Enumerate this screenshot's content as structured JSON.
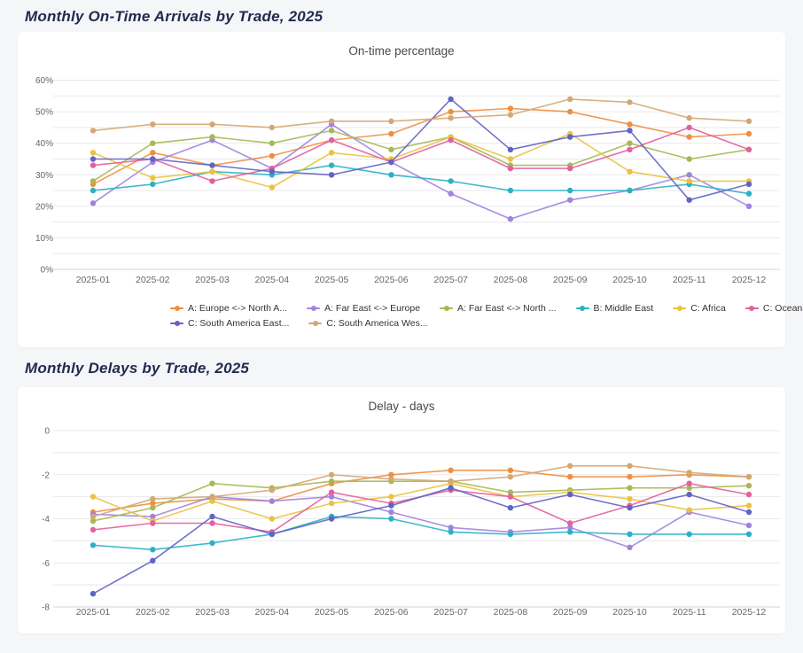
{
  "page": {
    "heading1": "Monthly On-Time Arrivals by Trade, 2025",
    "heading2": "Monthly Delays by Trade, 2025",
    "background_color": "#f5f6f8",
    "card_color": "#ffffff",
    "heading_color": "#232a50",
    "grid_color": "#e9e9ec",
    "axis_line_color": "#d4d4da",
    "tick_label_color": "#666666"
  },
  "chart_data": [
    {
      "type": "line",
      "title": "On-time percentage",
      "x": [
        "2025-01",
        "2025-02",
        "2025-03",
        "2025-04",
        "2025-05",
        "2025-06",
        "2025-07",
        "2025-08",
        "2025-09",
        "2025-10",
        "2025-11",
        "2025-12"
      ],
      "xlabel": "",
      "ylabel": "",
      "ylim": [
        0,
        60
      ],
      "grid": true,
      "grid_step": 5,
      "y_ticks": [
        {
          "value": 0,
          "label": "0%"
        },
        {
          "value": 10,
          "label": "10%"
        },
        {
          "value": 20,
          "label": "20%"
        },
        {
          "value": 30,
          "label": "30%"
        },
        {
          "value": 40,
          "label": "40%"
        },
        {
          "value": 50,
          "label": "50%"
        },
        {
          "value": 60,
          "label": "60%"
        }
      ],
      "legend_position": "bottom",
      "legend_rows": [
        [
          0,
          1,
          2,
          3,
          4,
          5
        ],
        [
          6,
          7
        ]
      ],
      "series": [
        {
          "name": "A: Europe <-> North A...",
          "color": "#ee8f41",
          "values": [
            27,
            37,
            33,
            36,
            41,
            43,
            50,
            51,
            50,
            46,
            42,
            43
          ]
        },
        {
          "name": "A: Far East <-> Europe",
          "color": "#a182e0",
          "values": [
            21,
            34,
            41,
            32,
            46,
            34,
            24,
            16,
            22,
            25,
            30,
            20
          ]
        },
        {
          "name": "A: Far East <-> North ...",
          "color": "#a6b854",
          "values": [
            28,
            40,
            42,
            40,
            44,
            38,
            42,
            33,
            33,
            40,
            35,
            38
          ]
        },
        {
          "name": "B: Middle East",
          "color": "#2cb1c4",
          "values": [
            25,
            27,
            31,
            30,
            33,
            30,
            28,
            25,
            25,
            25,
            27,
            24
          ]
        },
        {
          "name": "C: Africa",
          "color": "#e9c341",
          "values": [
            37,
            29,
            31,
            26,
            37,
            35,
            42,
            35,
            43,
            31,
            28,
            28
          ]
        },
        {
          "name": "C: Oceania",
          "color": "#e2619f",
          "values": [
            33,
            35,
            28,
            32,
            41,
            34,
            41,
            32,
            32,
            38,
            45,
            38
          ]
        },
        {
          "name": "C: South America East...",
          "color": "#6163c5",
          "values": [
            35,
            35,
            33,
            31,
            30,
            34,
            54,
            38,
            42,
            44,
            22,
            27
          ]
        },
        {
          "name": "C: South America Wes...",
          "color": "#d3a874",
          "values": [
            44,
            46,
            46,
            45,
            47,
            47,
            48,
            49,
            54,
            53,
            48,
            47
          ]
        }
      ]
    },
    {
      "type": "line",
      "title": "Delay - days",
      "x": [
        "2025-01",
        "2025-02",
        "2025-03",
        "2025-04",
        "2025-05",
        "2025-06",
        "2025-07",
        "2025-08",
        "2025-09",
        "2025-10",
        "2025-11",
        "2025-12"
      ],
      "xlabel": "",
      "ylabel": "",
      "ylim": [
        -8,
        0
      ],
      "grid": true,
      "grid_step": 1,
      "y_ticks": [
        {
          "value": 0,
          "label": "0"
        },
        {
          "value": -2,
          "label": "-2"
        },
        {
          "value": -4,
          "label": "-4"
        },
        {
          "value": -6,
          "label": "-6"
        },
        {
          "value": -8,
          "label": "-8"
        }
      ],
      "legend_position": "none",
      "legend_rows": [],
      "series": [
        {
          "name": "A: Europe <-> North A...",
          "color": "#ee8f41",
          "values": [
            -3.7,
            -3.3,
            -3.1,
            -3.2,
            -2.4,
            -2.0,
            -1.8,
            -1.8,
            -2.1,
            -2.1,
            -2.0,
            -2.1
          ]
        },
        {
          "name": "A: Far East <-> Europe",
          "color": "#a182e0",
          "values": [
            -3.8,
            -3.9,
            -3.0,
            -3.2,
            -3.0,
            -3.7,
            -4.4,
            -4.6,
            -4.4,
            -5.3,
            -3.7,
            -4.3
          ]
        },
        {
          "name": "A: Far East <-> North ...",
          "color": "#a6b854",
          "values": [
            -4.1,
            -3.5,
            -2.4,
            -2.6,
            -2.3,
            -2.3,
            -2.3,
            -2.8,
            -2.7,
            -2.6,
            -2.6,
            -2.5
          ]
        },
        {
          "name": "B: Middle East",
          "color": "#2cb1c4",
          "values": [
            -5.2,
            -5.4,
            -5.1,
            -4.7,
            -3.9,
            -4.0,
            -4.6,
            -4.7,
            -4.6,
            -4.7,
            -4.7,
            -4.7
          ]
        },
        {
          "name": "C: Africa",
          "color": "#e9c341",
          "values": [
            -3.0,
            -4.1,
            -3.2,
            -4.0,
            -3.3,
            -3.0,
            -2.4,
            -3.0,
            -2.8,
            -3.1,
            -3.6,
            -3.4
          ]
        },
        {
          "name": "C: Oceania",
          "color": "#e2619f",
          "values": [
            -4.5,
            -4.2,
            -4.2,
            -4.6,
            -2.8,
            -3.3,
            -2.7,
            -3.0,
            -4.2,
            -3.4,
            -2.4,
            -2.9
          ]
        },
        {
          "name": "C: South America East...",
          "color": "#6163c5",
          "values": [
            -7.4,
            -5.9,
            -3.9,
            -4.7,
            -4.0,
            -3.4,
            -2.6,
            -3.5,
            -2.9,
            -3.5,
            -2.9,
            -3.7
          ]
        },
        {
          "name": "C: South America Wes...",
          "color": "#d3a874",
          "values": [
            -3.9,
            -3.1,
            -3.0,
            -2.7,
            -2.0,
            -2.2,
            -2.3,
            -2.1,
            -1.6,
            -1.6,
            -1.9,
            -2.1
          ]
        }
      ]
    }
  ]
}
